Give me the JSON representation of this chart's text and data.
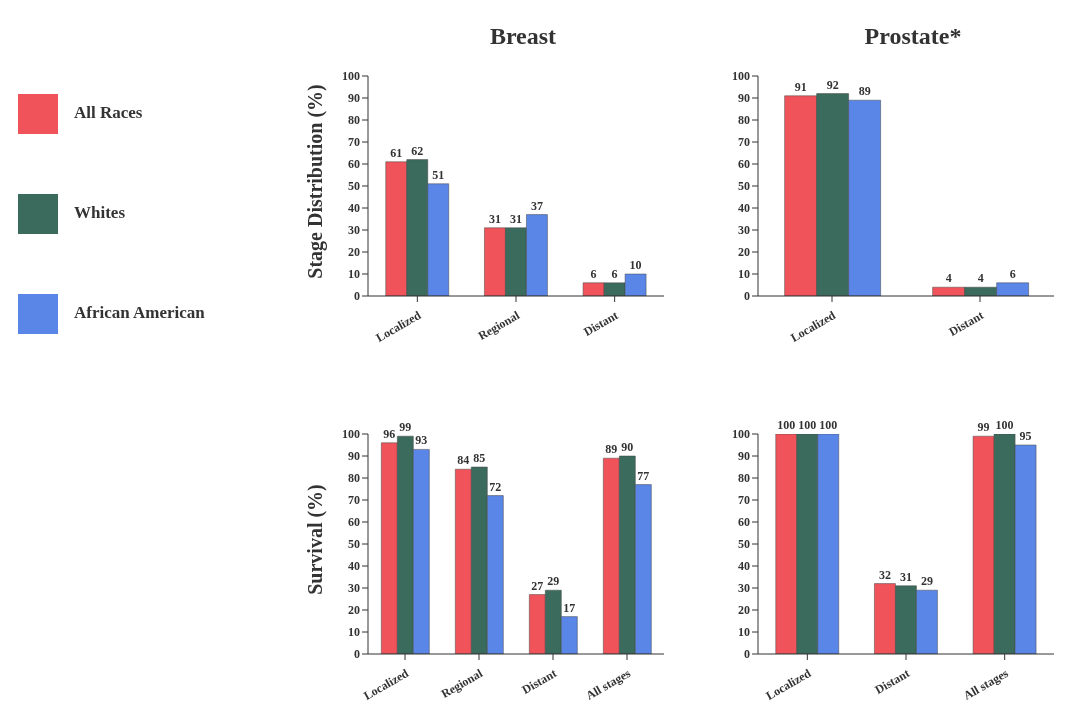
{
  "chart_data": [
    {
      "type": "bar",
      "title": "Breast",
      "ylabel": "Stage Distribution (%)",
      "categories": [
        "Localized",
        "Regional",
        "Distant"
      ],
      "series": [
        {
          "name": "All Races",
          "color": "#f0545a",
          "values": [
            61,
            31,
            6
          ]
        },
        {
          "name": "Whites",
          "color": "#3a6b5c",
          "values": [
            62,
            31,
            6
          ]
        },
        {
          "name": "African American",
          "color": "#5a86e8",
          "values": [
            51,
            37,
            10
          ]
        }
      ],
      "ylim": [
        0,
        100
      ],
      "yticks": [
        0,
        10,
        20,
        30,
        40,
        50,
        60,
        70,
        80,
        90,
        100
      ],
      "data_labels": true,
      "legend": "left"
    },
    {
      "type": "bar",
      "title": "Prostate*",
      "categories": [
        "Localized",
        "Distant"
      ],
      "series": [
        {
          "color": "#f0545a",
          "values": [
            91,
            4
          ]
        },
        {
          "color": "#3a6b5c",
          "values": [
            92,
            4
          ]
        },
        {
          "color": "#5a86e8",
          "values": [
            89,
            6
          ]
        }
      ],
      "ylim": [
        0,
        100
      ],
      "yticks": [
        0,
        10,
        20,
        30,
        40,
        50,
        60,
        70,
        80,
        90,
        100
      ],
      "data_labels": true
    },
    {
      "type": "bar",
      "ylabel": "Survival (%)",
      "categories": [
        "Localized",
        "Regional",
        "Distant",
        "All stages"
      ],
      "series": [
        {
          "color": "#f0545a",
          "values": [
            96,
            84,
            27,
            89
          ]
        },
        {
          "color": "#3a6b5c",
          "values": [
            99,
            85,
            29,
            90
          ]
        },
        {
          "color": "#5a86e8",
          "values": [
            93,
            72,
            17,
            77
          ]
        }
      ],
      "ylim": [
        0,
        100
      ],
      "yticks": [
        0,
        10,
        20,
        30,
        40,
        50,
        60,
        70,
        80,
        90,
        100
      ],
      "data_labels": true
    },
    {
      "type": "bar",
      "categories": [
        "Localized",
        "Distant",
        "All stages"
      ],
      "series": [
        {
          "color": "#f0545a",
          "values": [
            100,
            32,
            99
          ]
        },
        {
          "color": "#3a6b5c",
          "values": [
            100,
            31,
            100
          ]
        },
        {
          "color": "#5a86e8",
          "values": [
            100,
            29,
            95
          ]
        }
      ],
      "ylim": [
        0,
        100
      ],
      "yticks": [
        0,
        10,
        20,
        30,
        40,
        50,
        60,
        70,
        80,
        90,
        100
      ],
      "data_labels": true
    }
  ]
}
